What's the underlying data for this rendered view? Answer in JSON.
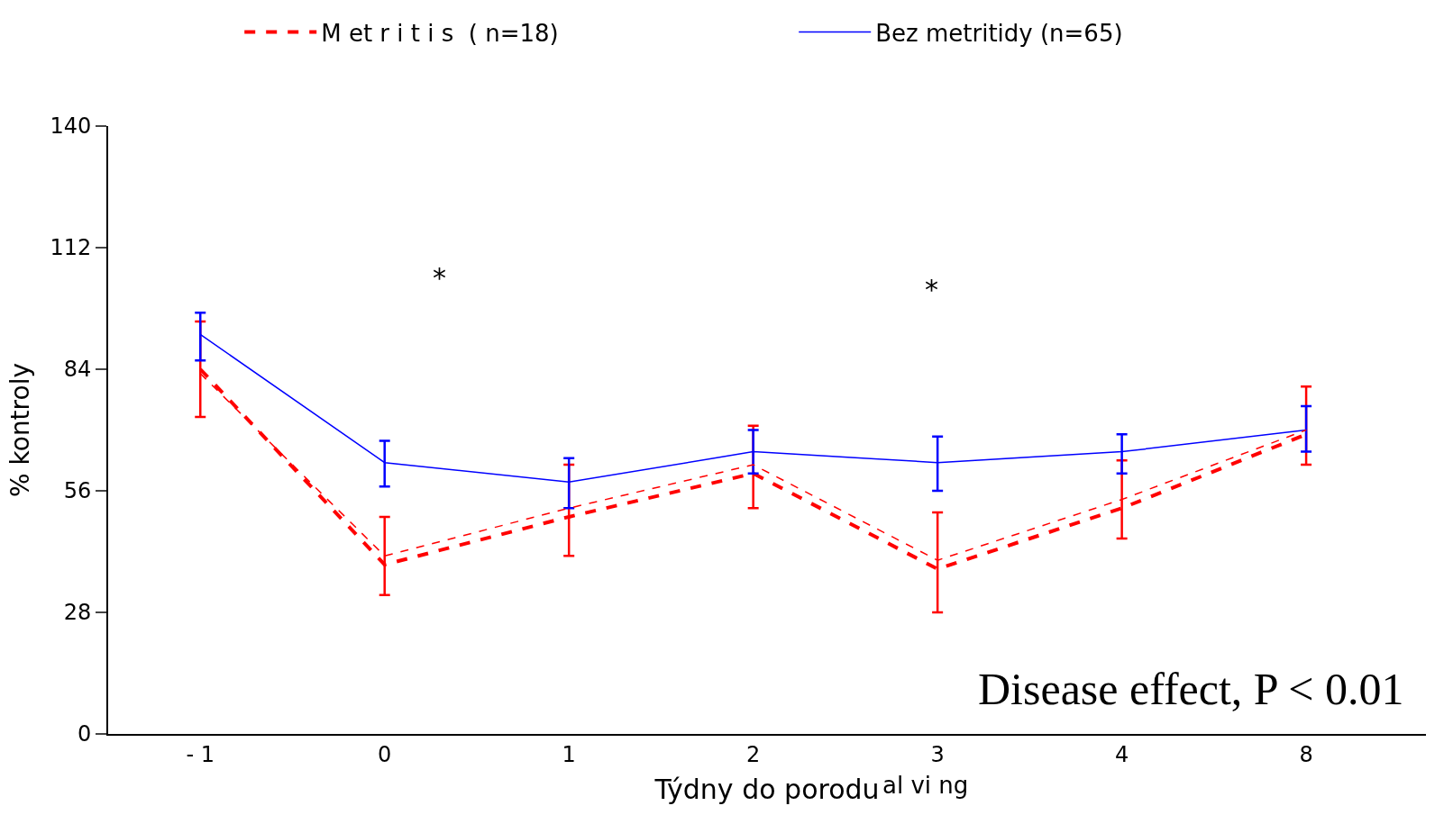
{
  "chart_data": {
    "type": "line",
    "xlabel": "Týdny do porodu",
    "ylabel": "% kontroly",
    "categories": [
      "- 1",
      "0",
      "1",
      "2",
      "3",
      "4",
      "8"
    ],
    "ylim": [
      0,
      140
    ],
    "yticks": [
      0,
      28,
      56,
      84,
      112,
      140
    ],
    "legend": "top",
    "marker": "none",
    "series": [
      {
        "name": "M et r i t i s  ( n=18)",
        "color": "#ff0000",
        "line_style": "dashed",
        "values": [
          84,
          39,
          50,
          60,
          38,
          52,
          69
        ],
        "errors": [
          [
            73,
            95
          ],
          [
            32,
            50
          ],
          [
            41,
            62
          ],
          [
            52,
            71
          ],
          [
            28,
            51
          ],
          [
            45,
            63
          ],
          [
            62,
            80
          ]
        ]
      },
      {
        "name": "Bez metritidy (n=65)",
        "color": "#0000ff",
        "line_style": "solid",
        "values": [
          92,
          62.5,
          58,
          65,
          62.5,
          65,
          70
        ],
        "errors": [
          [
            86,
            97
          ],
          [
            57,
            67.5
          ],
          [
            52,
            63.5
          ],
          [
            60,
            70
          ],
          [
            56,
            68.5
          ],
          [
            60,
            69
          ],
          [
            65,
            75.5
          ]
        ]
      },
      {
        "color": "#ff0000",
        "line_style": "dashed",
        "values": [
          83,
          41,
          52,
          62,
          40,
          54,
          70
        ]
      }
    ],
    "annotations": [
      "*",
      "*",
      "Disease effect, P < 0.01",
      "al vi ng"
    ]
  }
}
